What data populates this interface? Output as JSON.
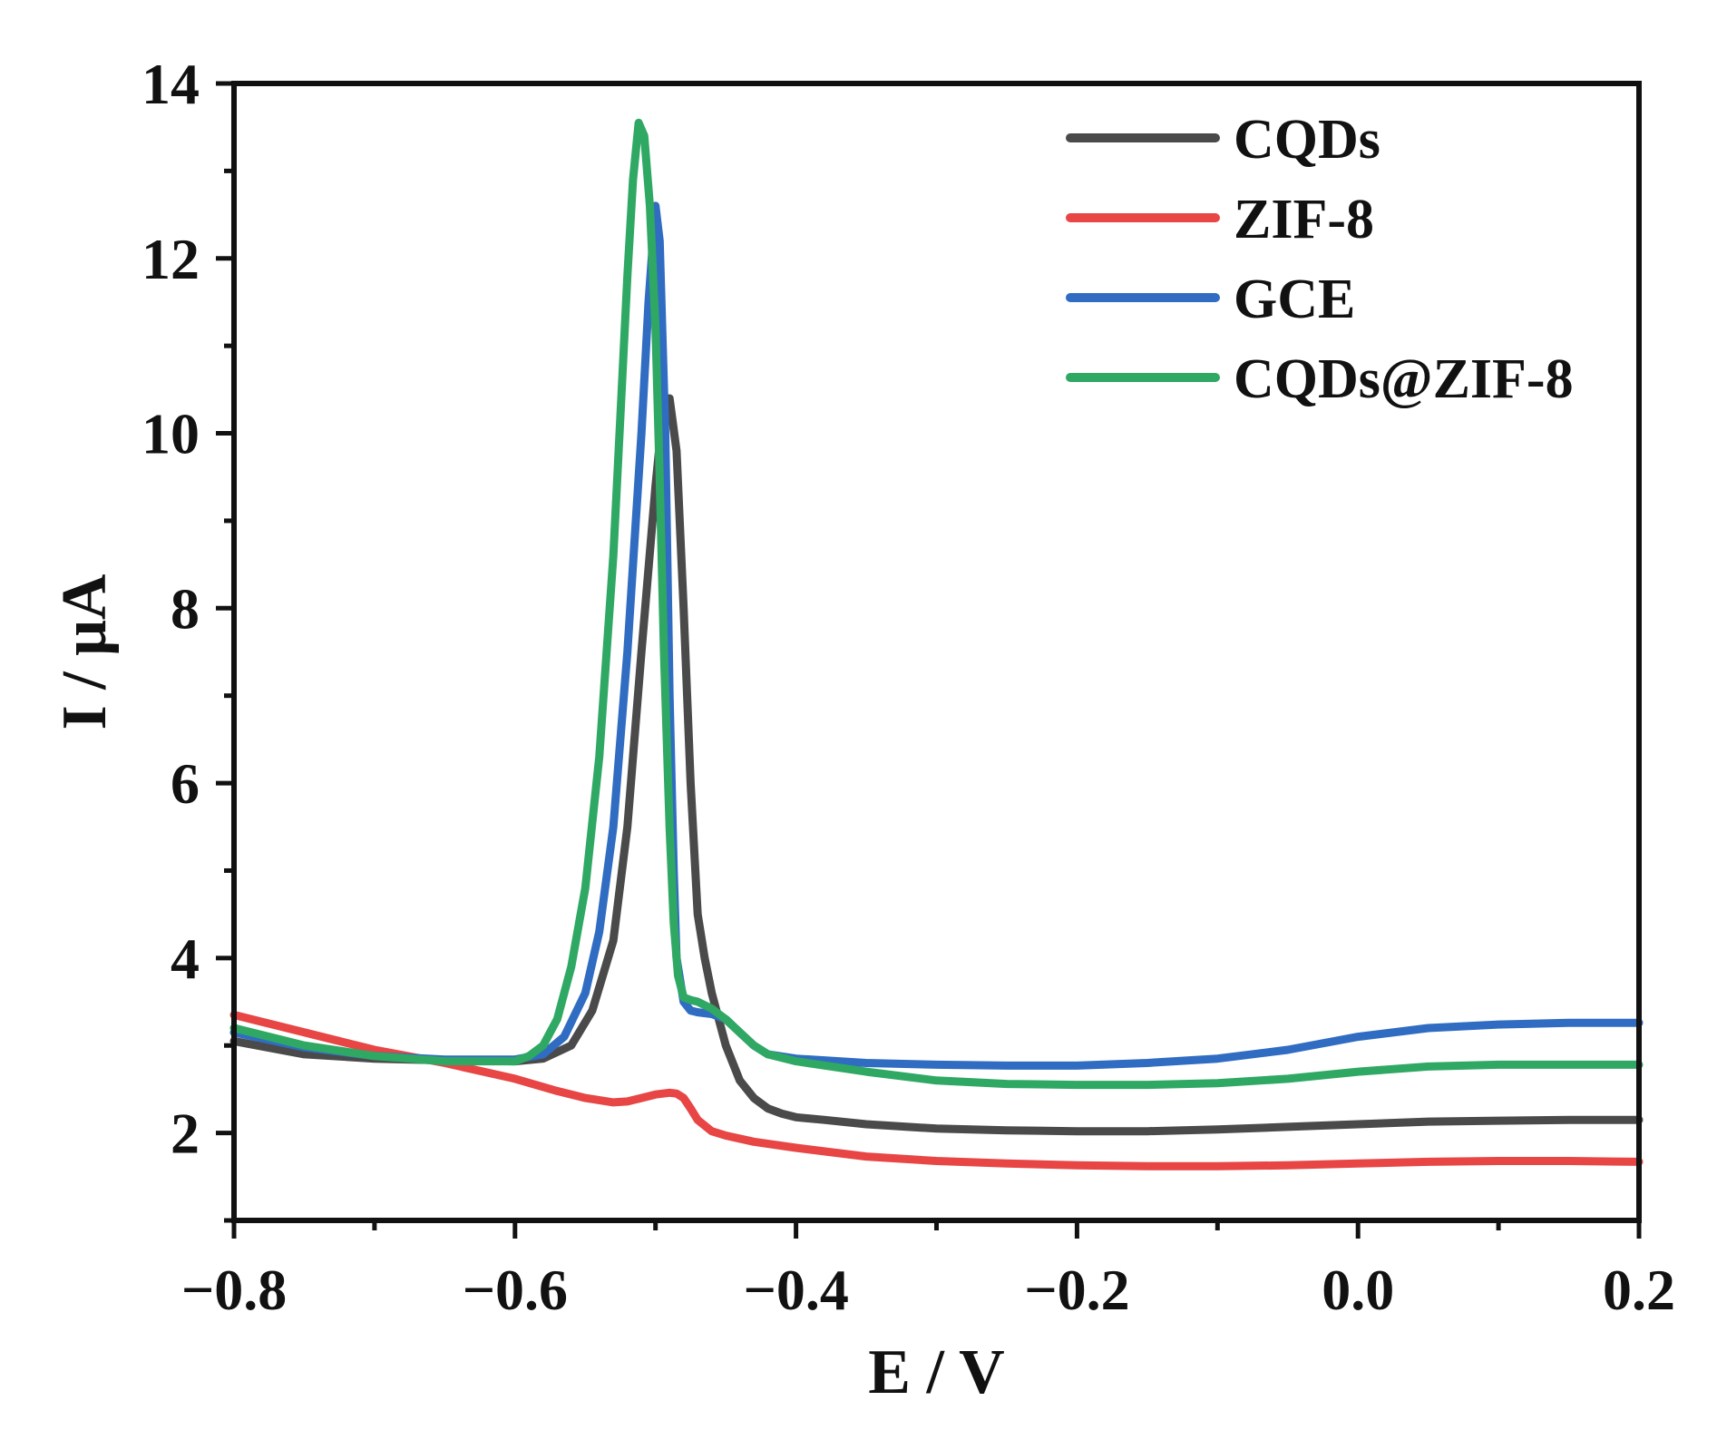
{
  "chart_data": {
    "type": "line",
    "title": "",
    "xlabel": "E / V",
    "ylabel": "I / μA",
    "xlim": [
      -0.8,
      0.2
    ],
    "ylim": [
      1.0,
      14.0
    ],
    "xticks": [
      -0.8,
      -0.6,
      -0.4,
      -0.2,
      0.0,
      0.2
    ],
    "xtick_labels": [
      "−0.8",
      "−0.6",
      "−0.4",
      "−0.2",
      "0.0",
      "0.2"
    ],
    "yticks": [
      2,
      4,
      6,
      8,
      10,
      12,
      14
    ],
    "ytick_labels": [
      "2",
      "4",
      "6",
      "8",
      "10",
      "12",
      "14"
    ],
    "grid": false,
    "legend_position": "top-right",
    "series": [
      {
        "name": "CQDs",
        "color": "#4a4a4a",
        "x": [
          -0.8,
          -0.75,
          -0.7,
          -0.65,
          -0.6,
          -0.58,
          -0.56,
          -0.545,
          -0.53,
          -0.52,
          -0.51,
          -0.5,
          -0.495,
          -0.49,
          -0.485,
          -0.48,
          -0.475,
          -0.47,
          -0.465,
          -0.46,
          -0.45,
          -0.44,
          -0.43,
          -0.42,
          -0.41,
          -0.4,
          -0.38,
          -0.35,
          -0.3,
          -0.25,
          -0.2,
          -0.15,
          -0.1,
          -0.05,
          0.0,
          0.05,
          0.1,
          0.15,
          0.2
        ],
        "y": [
          3.05,
          2.9,
          2.85,
          2.83,
          2.82,
          2.85,
          3.0,
          3.4,
          4.2,
          5.5,
          7.5,
          9.4,
          10.2,
          10.4,
          9.8,
          8.0,
          6.0,
          4.5,
          4.0,
          3.6,
          3.0,
          2.6,
          2.4,
          2.28,
          2.22,
          2.18,
          2.15,
          2.1,
          2.05,
          2.03,
          2.02,
          2.02,
          2.04,
          2.07,
          2.1,
          2.13,
          2.14,
          2.15,
          2.15
        ]
      },
      {
        "name": "ZIF-8",
        "color": "#e84545",
        "x": [
          -0.8,
          -0.75,
          -0.7,
          -0.65,
          -0.6,
          -0.57,
          -0.55,
          -0.53,
          -0.52,
          -0.51,
          -0.5,
          -0.49,
          -0.485,
          -0.48,
          -0.475,
          -0.47,
          -0.46,
          -0.45,
          -0.43,
          -0.4,
          -0.35,
          -0.3,
          -0.25,
          -0.2,
          -0.15,
          -0.1,
          -0.05,
          0.0,
          0.05,
          0.1,
          0.15,
          0.2
        ],
        "y": [
          3.35,
          3.15,
          2.95,
          2.8,
          2.62,
          2.48,
          2.4,
          2.35,
          2.36,
          2.4,
          2.44,
          2.46,
          2.45,
          2.4,
          2.28,
          2.15,
          2.02,
          1.97,
          1.9,
          1.83,
          1.73,
          1.68,
          1.65,
          1.63,
          1.62,
          1.62,
          1.63,
          1.65,
          1.67,
          1.68,
          1.68,
          1.67
        ]
      },
      {
        "name": "GCE",
        "color": "#2f6cc2",
        "x": [
          -0.8,
          -0.75,
          -0.7,
          -0.65,
          -0.6,
          -0.58,
          -0.565,
          -0.55,
          -0.54,
          -0.53,
          -0.52,
          -0.51,
          -0.505,
          -0.5,
          -0.497,
          -0.493,
          -0.49,
          -0.487,
          -0.485,
          -0.48,
          -0.475,
          -0.47,
          -0.46,
          -0.45,
          -0.44,
          -0.43,
          -0.42,
          -0.4,
          -0.35,
          -0.3,
          -0.25,
          -0.2,
          -0.15,
          -0.1,
          -0.05,
          0.0,
          0.05,
          0.1,
          0.15,
          0.2
        ],
        "y": [
          3.15,
          2.98,
          2.88,
          2.84,
          2.84,
          2.9,
          3.1,
          3.6,
          4.3,
          5.5,
          7.5,
          10.0,
          11.5,
          12.6,
          12.2,
          10.0,
          7.0,
          5.0,
          4.0,
          3.5,
          3.4,
          3.38,
          3.36,
          3.3,
          3.15,
          3.0,
          2.9,
          2.85,
          2.8,
          2.78,
          2.77,
          2.77,
          2.8,
          2.85,
          2.95,
          3.1,
          3.2,
          3.24,
          3.26,
          3.26
        ]
      },
      {
        "name": "CQDs@ZIF-8",
        "color": "#2fa864",
        "x": [
          -0.8,
          -0.75,
          -0.7,
          -0.65,
          -0.6,
          -0.59,
          -0.58,
          -0.57,
          -0.56,
          -0.55,
          -0.54,
          -0.53,
          -0.525,
          -0.52,
          -0.516,
          -0.512,
          -0.508,
          -0.504,
          -0.5,
          -0.497,
          -0.494,
          -0.49,
          -0.487,
          -0.484,
          -0.48,
          -0.475,
          -0.47,
          -0.46,
          -0.45,
          -0.44,
          -0.43,
          -0.42,
          -0.4,
          -0.35,
          -0.3,
          -0.25,
          -0.2,
          -0.15,
          -0.1,
          -0.05,
          0.0,
          0.05,
          0.1,
          0.15,
          0.2
        ],
        "y": [
          3.2,
          3.0,
          2.88,
          2.82,
          2.82,
          2.88,
          3.0,
          3.3,
          3.9,
          4.8,
          6.3,
          8.6,
          10.2,
          11.8,
          12.9,
          13.55,
          13.4,
          12.6,
          11.2,
          9.5,
          7.5,
          5.5,
          4.4,
          3.8,
          3.55,
          3.52,
          3.5,
          3.42,
          3.3,
          3.15,
          3.0,
          2.9,
          2.82,
          2.7,
          2.6,
          2.56,
          2.55,
          2.55,
          2.57,
          2.62,
          2.7,
          2.76,
          2.78,
          2.78,
          2.78
        ]
      }
    ]
  }
}
